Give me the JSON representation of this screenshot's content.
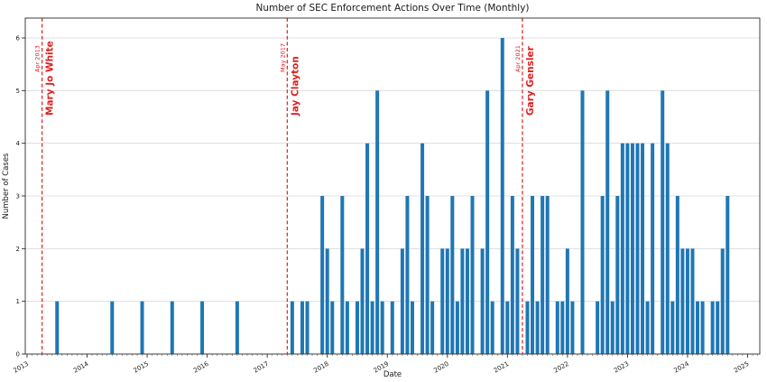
{
  "chart_data": {
    "type": "bar",
    "title": "Number of SEC Enforcement Actions Over Time (Monthly)",
    "xlabel": "Date",
    "ylabel": "Number of Cases",
    "x_range": [
      "2013-01",
      "2025-03"
    ],
    "ylim": [
      0,
      6.4
    ],
    "yticks": [
      0,
      1,
      2,
      3,
      4,
      5,
      6
    ],
    "xticks": [
      2013,
      2014,
      2015,
      2016,
      2017,
      2018,
      2019,
      2020,
      2021,
      2022,
      2023,
      2024,
      2025
    ],
    "grid": "horizontal",
    "legend": "none",
    "bar_color": "#1f77b4",
    "event_line_color": "#e02020",
    "bars": [
      {
        "month": "2013-07",
        "count": 1
      },
      {
        "month": "2014-06",
        "count": 1
      },
      {
        "month": "2014-12",
        "count": 1
      },
      {
        "month": "2015-06",
        "count": 1
      },
      {
        "month": "2015-12",
        "count": 1
      },
      {
        "month": "2016-07",
        "count": 1
      },
      {
        "month": "2017-06",
        "count": 1
      },
      {
        "month": "2017-08",
        "count": 1
      },
      {
        "month": "2017-09",
        "count": 1
      },
      {
        "month": "2017-12",
        "count": 3
      },
      {
        "month": "2018-01",
        "count": 2
      },
      {
        "month": "2018-02",
        "count": 1
      },
      {
        "month": "2018-04",
        "count": 3
      },
      {
        "month": "2018-05",
        "count": 1
      },
      {
        "month": "2018-07",
        "count": 1
      },
      {
        "month": "2018-08",
        "count": 2
      },
      {
        "month": "2018-09",
        "count": 4
      },
      {
        "month": "2018-10",
        "count": 1
      },
      {
        "month": "2018-11",
        "count": 5
      },
      {
        "month": "2018-12",
        "count": 1
      },
      {
        "month": "2019-02",
        "count": 1
      },
      {
        "month": "2019-04",
        "count": 2
      },
      {
        "month": "2019-05",
        "count": 3
      },
      {
        "month": "2019-06",
        "count": 1
      },
      {
        "month": "2019-08",
        "count": 4
      },
      {
        "month": "2019-09",
        "count": 3
      },
      {
        "month": "2019-10",
        "count": 1
      },
      {
        "month": "2019-12",
        "count": 2
      },
      {
        "month": "2020-01",
        "count": 2
      },
      {
        "month": "2020-02",
        "count": 3
      },
      {
        "month": "2020-03",
        "count": 1
      },
      {
        "month": "2020-04",
        "count": 2
      },
      {
        "month": "2020-05",
        "count": 2
      },
      {
        "month": "2020-06",
        "count": 3
      },
      {
        "month": "2020-08",
        "count": 2
      },
      {
        "month": "2020-09",
        "count": 5
      },
      {
        "month": "2020-10",
        "count": 1
      },
      {
        "month": "2020-12",
        "count": 6
      },
      {
        "month": "2021-01",
        "count": 1
      },
      {
        "month": "2021-02",
        "count": 3
      },
      {
        "month": "2021-03",
        "count": 2
      },
      {
        "month": "2021-05",
        "count": 1
      },
      {
        "month": "2021-06",
        "count": 3
      },
      {
        "month": "2021-07",
        "count": 1
      },
      {
        "month": "2021-08",
        "count": 3
      },
      {
        "month": "2021-09",
        "count": 3
      },
      {
        "month": "2021-11",
        "count": 1
      },
      {
        "month": "2021-12",
        "count": 1
      },
      {
        "month": "2022-01",
        "count": 2
      },
      {
        "month": "2022-02",
        "count": 1
      },
      {
        "month": "2022-04",
        "count": 5
      },
      {
        "month": "2022-07",
        "count": 1
      },
      {
        "month": "2022-08",
        "count": 3
      },
      {
        "month": "2022-09",
        "count": 5
      },
      {
        "month": "2022-10",
        "count": 1
      },
      {
        "month": "2022-11",
        "count": 3
      },
      {
        "month": "2022-12",
        "count": 4
      },
      {
        "month": "2023-01",
        "count": 4
      },
      {
        "month": "2023-02",
        "count": 4
      },
      {
        "month": "2023-03",
        "count": 4
      },
      {
        "month": "2023-04",
        "count": 4
      },
      {
        "month": "2023-05",
        "count": 1
      },
      {
        "month": "2023-06",
        "count": 4
      },
      {
        "month": "2023-08",
        "count": 5
      },
      {
        "month": "2023-09",
        "count": 4
      },
      {
        "month": "2023-10",
        "count": 1
      },
      {
        "month": "2023-11",
        "count": 3
      },
      {
        "month": "2023-12",
        "count": 2
      },
      {
        "month": "2024-01",
        "count": 2
      },
      {
        "month": "2024-02",
        "count": 2
      },
      {
        "month": "2024-03",
        "count": 1
      },
      {
        "month": "2024-04",
        "count": 1
      },
      {
        "month": "2024-06",
        "count": 1
      },
      {
        "month": "2024-07",
        "count": 1
      },
      {
        "month": "2024-08",
        "count": 2
      },
      {
        "month": "2024-09",
        "count": 3
      }
    ],
    "events": [
      {
        "month": "2013-04",
        "date_label": "Apr 2013",
        "name": "Mary Jo White"
      },
      {
        "month": "2017-05",
        "date_label": "May 2017",
        "name": "Jay Clayton"
      },
      {
        "month": "2021-04",
        "date_label": "Apr 2021",
        "name": "Gary Gensler"
      }
    ]
  }
}
